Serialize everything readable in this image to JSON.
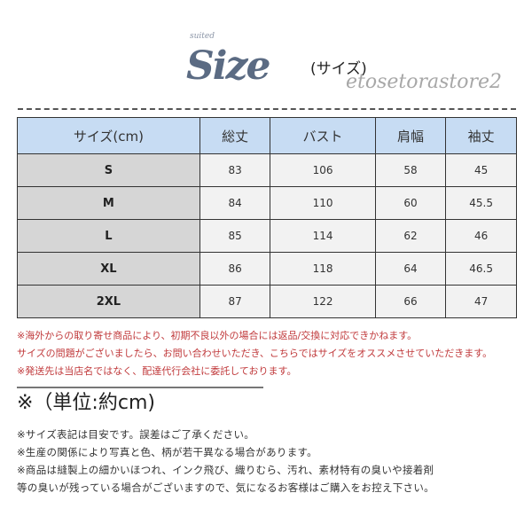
{
  "title": {
    "small": "suited",
    "main": "Size",
    "sub": "(サイズ)"
  },
  "table": {
    "headers": [
      "サイズ(cm)",
      "総丈",
      "バスト",
      "肩幅",
      "袖丈"
    ],
    "rows": [
      [
        "S",
        "83",
        "106",
        "58",
        "45"
      ],
      [
        "M",
        "84",
        "110",
        "60",
        "45.5"
      ],
      [
        "L",
        "85",
        "114",
        "62",
        "46"
      ],
      [
        "XL",
        "86",
        "118",
        "64",
        "46.5"
      ],
      [
        "2XL",
        "87",
        "122",
        "66",
        "47"
      ]
    ]
  },
  "watermark": "etosetorastore2",
  "red_notes": [
    "※海外からの取り寄せ商品により、初期不良以外の場合には返品/交換に対応できかねます。",
    "サイズの問題がございましたら、お問い合わせいただき、こちらではサイズをオススメさせていただきます。",
    "※発送先は当店名ではなく、配達代行会社に委託しております。"
  ],
  "unit": "※（単位:約cm)",
  "notes": [
    "※サイズ表記は目安です。誤差はご了承ください。",
    "※生産の関係により写真と色、柄が若干異なる場合があります。",
    "※商品は縫製上の細かいほつれ、インク飛び、織りむら、汚れ、素材特有の臭いや接着剤",
    "等の臭いが残っている場合がございますので、気になるお客様はご購入をお控え下さい。"
  ],
  "colors": {
    "header_bg": "#c7dcf3",
    "size_col_bg": "#d6d6d6",
    "cell_bg": "#f2f2f2",
    "red_text": "#c0393b",
    "title": "#5b6b83"
  }
}
